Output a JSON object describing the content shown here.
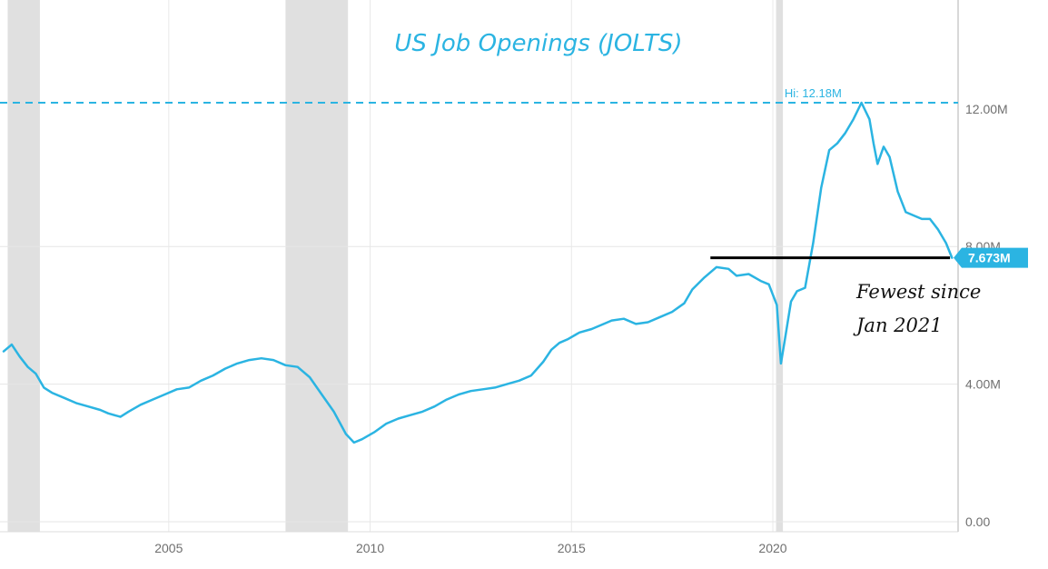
{
  "chart_data": {
    "type": "line",
    "title": "US Job Openings (JOLTS)",
    "xlabel": "",
    "ylabel": "",
    "xlim": [
      2000.9,
      2024.6
    ],
    "ylim": [
      0,
      12.18
    ],
    "x_ticks": [
      2005,
      2010,
      2015,
      2020
    ],
    "x_tick_labels": [
      "2005",
      "2010",
      "2015",
      "2020"
    ],
    "y_ticks": [
      0,
      4,
      8,
      12
    ],
    "y_tick_labels": [
      "0.00",
      "4.00M",
      "8.00M",
      "12.00M"
    ],
    "grid": true,
    "recessions": [
      [
        2001.0,
        2001.8
      ],
      [
        2007.9,
        2009.45
      ],
      [
        2020.08,
        2020.25
      ]
    ],
    "high": {
      "value": 12.18,
      "label": "Hi: 12.18M"
    },
    "last": {
      "value": 7.673,
      "label": "7.673M"
    },
    "annotation": {
      "line_x": [
        2018.45,
        2024.4
      ],
      "line_y": 7.673,
      "text_lines": [
        "Fewest since",
        "Jan 2021"
      ]
    },
    "series": [
      {
        "name": "",
        "color": "#2bb4e2",
        "x": [
          2000.9,
          2001.1,
          2001.3,
          2001.5,
          2001.7,
          2001.9,
          2002.1,
          2002.4,
          2002.7,
          2003.0,
          2003.3,
          2003.5,
          2003.8,
          2004.0,
          2004.3,
          2004.6,
          2004.9,
          2005.2,
          2005.5,
          2005.8,
          2006.1,
          2006.4,
          2006.7,
          2007.0,
          2007.3,
          2007.6,
          2007.9,
          2008.2,
          2008.5,
          2008.8,
          2009.1,
          2009.4,
          2009.6,
          2009.8,
          2010.1,
          2010.4,
          2010.7,
          2011.0,
          2011.3,
          2011.6,
          2011.9,
          2012.2,
          2012.5,
          2012.8,
          2013.1,
          2013.4,
          2013.7,
          2014.0,
          2014.3,
          2014.5,
          2014.7,
          2014.9,
          2015.2,
          2015.5,
          2015.8,
          2016.0,
          2016.3,
          2016.6,
          2016.9,
          2017.2,
          2017.5,
          2017.8,
          2018.0,
          2018.3,
          2018.6,
          2018.9,
          2019.1,
          2019.4,
          2019.7,
          2019.9,
          2020.1,
          2020.2,
          2020.3,
          2020.45,
          2020.6,
          2020.8,
          2021.0,
          2021.2,
          2021.4,
          2021.6,
          2021.8,
          2022.0,
          2022.2,
          2022.4,
          2022.5,
          2022.6,
          2022.75,
          2022.9,
          2023.1,
          2023.3,
          2023.5,
          2023.7,
          2023.9,
          2024.1,
          2024.3,
          2024.45
        ],
        "y": [
          4.95,
          5.15,
          4.8,
          4.5,
          4.3,
          3.9,
          3.75,
          3.6,
          3.45,
          3.35,
          3.25,
          3.15,
          3.05,
          3.2,
          3.4,
          3.55,
          3.7,
          3.85,
          3.9,
          4.1,
          4.25,
          4.45,
          4.6,
          4.7,
          4.75,
          4.7,
          4.55,
          4.5,
          4.2,
          3.7,
          3.2,
          2.55,
          2.3,
          2.4,
          2.6,
          2.85,
          3.0,
          3.1,
          3.2,
          3.35,
          3.55,
          3.7,
          3.8,
          3.85,
          3.9,
          4.0,
          4.1,
          4.25,
          4.65,
          5.0,
          5.2,
          5.3,
          5.5,
          5.6,
          5.75,
          5.85,
          5.9,
          5.75,
          5.8,
          5.95,
          6.1,
          6.35,
          6.75,
          7.1,
          7.4,
          7.35,
          7.15,
          7.2,
          7.0,
          6.9,
          6.3,
          4.6,
          5.3,
          6.4,
          6.7,
          6.8,
          8.1,
          9.7,
          10.8,
          11.0,
          11.3,
          11.7,
          12.18,
          11.7,
          11.0,
          10.4,
          10.9,
          10.6,
          9.6,
          9.0,
          8.9,
          8.8,
          8.8,
          8.5,
          8.1,
          7.673
        ]
      }
    ]
  }
}
